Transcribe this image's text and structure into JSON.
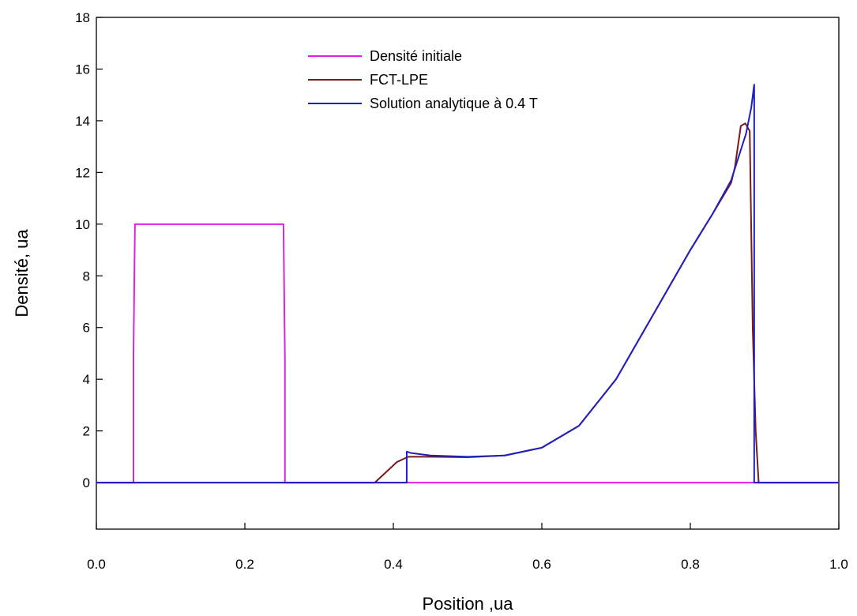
{
  "chart_data": {
    "type": "line",
    "xlabel": "Position ,ua",
    "ylabel": "Densité, ua",
    "xlim": [
      0,
      1
    ],
    "ylim": [
      -1.8,
      18
    ],
    "x_ticks": [
      "0.0",
      "0.2",
      "0.4",
      "0.6",
      "0.8",
      "1.0"
    ],
    "y_ticks": [
      "0",
      "2",
      "4",
      "6",
      "8",
      "10",
      "12",
      "14",
      "16",
      "18"
    ],
    "grid": false,
    "legend_position": "top-center",
    "series": [
      {
        "name": "Densité initiale",
        "color": "#e020e0",
        "x": [
          0,
          0.05,
          0.05,
          0.052,
          0.252,
          0.254,
          0.254,
          1
        ],
        "y": [
          0,
          0,
          5,
          10,
          10,
          4.7,
          0,
          0
        ]
      },
      {
        "name": "FCT-LPE",
        "color": "#7a1a1a",
        "x": [
          0,
          0.375,
          0.39,
          0.405,
          0.42,
          0.45,
          0.5,
          0.55,
          0.6,
          0.65,
          0.7,
          0.75,
          0.8,
          0.83,
          0.855,
          0.86,
          0.868,
          0.874,
          0.88,
          0.884,
          0.888,
          0.892,
          1
        ],
        "y": [
          0,
          0,
          0.4,
          0.8,
          1.0,
          1.0,
          0.98,
          1.05,
          1.35,
          2.2,
          4.0,
          6.5,
          9.0,
          10.4,
          11.6,
          12.2,
          13.8,
          13.9,
          13.6,
          6.0,
          2.0,
          0,
          0
        ]
      },
      {
        "name": "Solution analytique à 0.4 T",
        "color": "#2020c0",
        "x": [
          0,
          0.418,
          0.418,
          0.423,
          0.45,
          0.5,
          0.55,
          0.6,
          0.65,
          0.7,
          0.75,
          0.8,
          0.83,
          0.855,
          0.875,
          0.882,
          0.886,
          0.886,
          1
        ],
        "y": [
          0,
          0,
          1.2,
          1.15,
          1.05,
          1.0,
          1.05,
          1.35,
          2.2,
          4.0,
          6.5,
          9.0,
          10.4,
          11.7,
          13.5,
          14.5,
          15.4,
          0,
          0
        ]
      }
    ]
  }
}
